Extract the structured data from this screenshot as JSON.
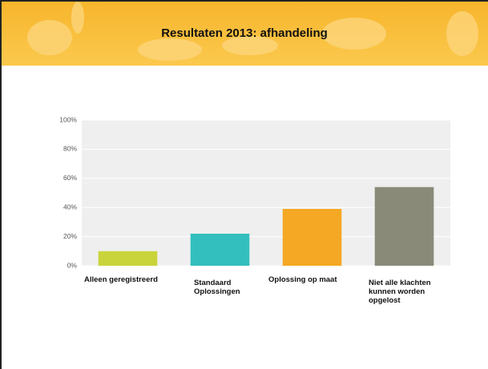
{
  "chart_data": {
    "type": "bar",
    "title": "Resultaten 2013: afhandeling",
    "categories": [
      "Alleen geregistreerd",
      "Standaard Oplossingen",
      "Oplossing op maat",
      "Niet alle klachten kunnen worden opgelost"
    ],
    "values": [
      10,
      22,
      39,
      54
    ],
    "colors": [
      "#c9d43a",
      "#34bfbf",
      "#f5a823",
      "#8a8a78"
    ],
    "ylim": [
      0,
      100
    ],
    "yticks": [
      {
        "value": 0,
        "label": "0%"
      },
      {
        "value": 20,
        "label": "20%"
      },
      {
        "value": 40,
        "label": "40%"
      },
      {
        "value": 60,
        "label": "60%"
      },
      {
        "value": 80,
        "label": "80%"
      },
      {
        "value": 100,
        "label": "100%"
      }
    ],
    "grid": true
  }
}
